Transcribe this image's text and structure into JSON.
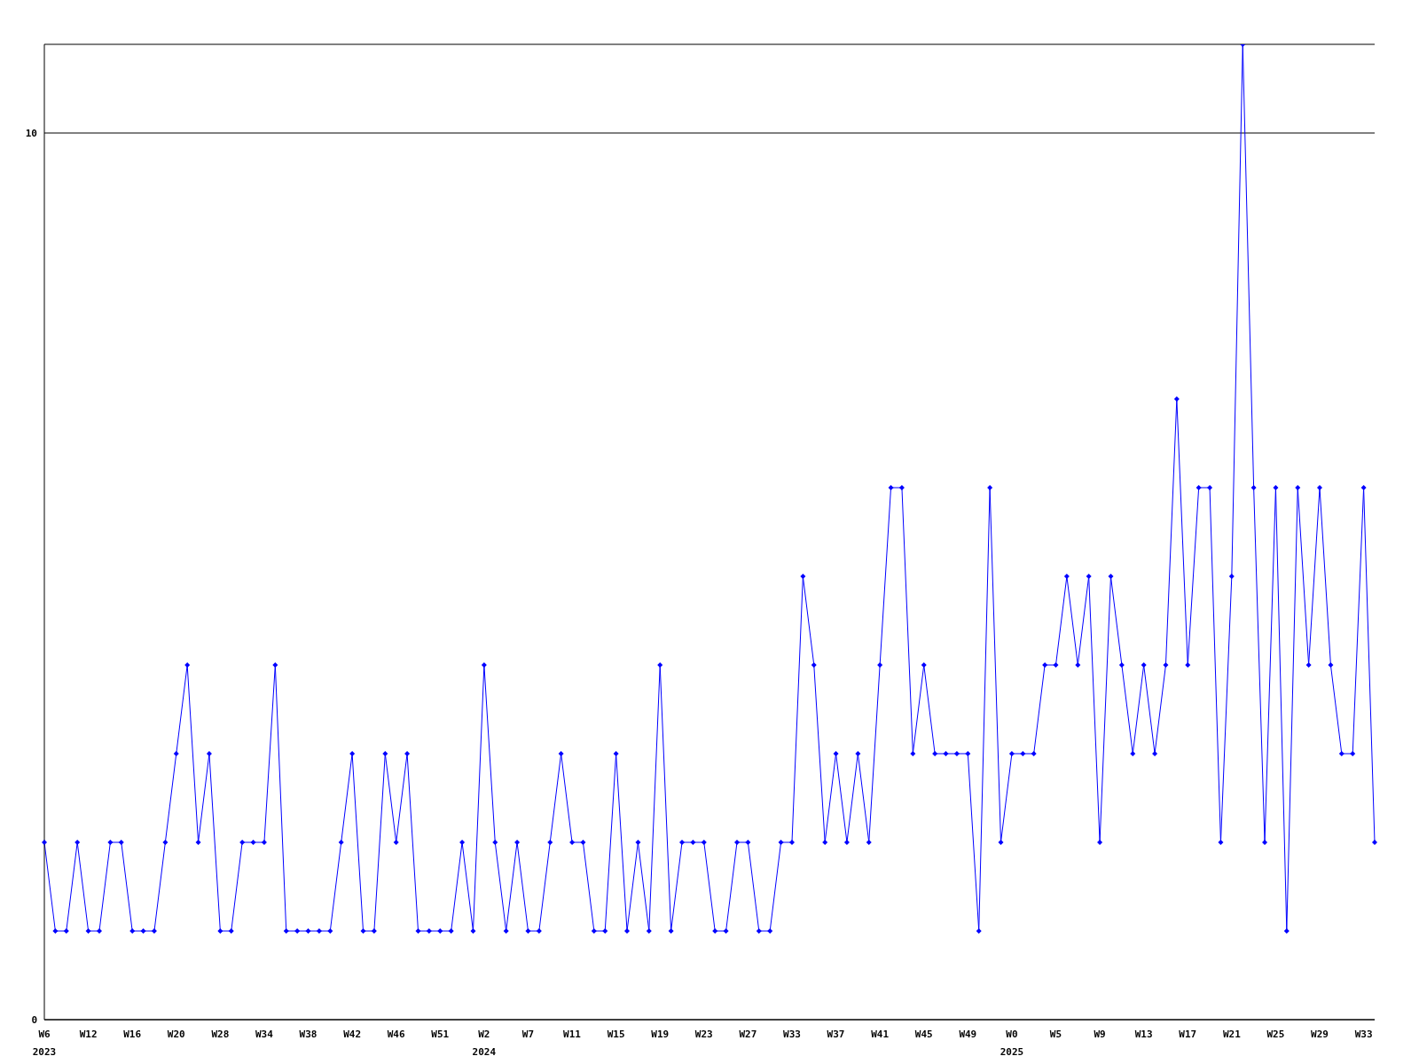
{
  "chart_data": {
    "type": "line",
    "categories": [
      "W6\n2023",
      null,
      null,
      null,
      "W12",
      null,
      null,
      null,
      "W16",
      null,
      null,
      null,
      "W20",
      null,
      null,
      null,
      "W28",
      null,
      null,
      null,
      "W34",
      null,
      null,
      null,
      "W38",
      null,
      null,
      null,
      "W42",
      null,
      null,
      null,
      "W46",
      null,
      null,
      null,
      "W51",
      null,
      null,
      null,
      "W2\n2024",
      null,
      null,
      null,
      "W7",
      null,
      null,
      null,
      "W11",
      null,
      null,
      null,
      "W15",
      null,
      null,
      null,
      "W19",
      null,
      null,
      null,
      "W23",
      null,
      null,
      null,
      "W27",
      null,
      null,
      null,
      "W33",
      null,
      null,
      null,
      "W37",
      null,
      null,
      null,
      "W41",
      null,
      null,
      null,
      "W45",
      null,
      null,
      null,
      "W49",
      null,
      null,
      null,
      "W0\n2025",
      null,
      null,
      null,
      "W5",
      null,
      null,
      null,
      "W9",
      null,
      null,
      null,
      "W13",
      null,
      null,
      null,
      "W17",
      null,
      null,
      null,
      "W21",
      null,
      null,
      null,
      "W25",
      null,
      null,
      null,
      "W29",
      null,
      null,
      null,
      "W33",
      null
    ],
    "values": [
      2,
      1,
      1,
      2,
      1,
      1,
      2,
      2,
      1,
      1,
      1,
      2,
      3,
      4,
      2,
      3,
      1,
      1,
      2,
      2,
      2,
      4,
      1,
      1,
      1,
      1,
      1,
      2,
      3,
      1,
      1,
      3,
      2,
      3,
      1,
      1,
      1,
      1,
      2,
      1,
      4,
      2,
      1,
      2,
      1,
      1,
      2,
      3,
      2,
      2,
      1,
      1,
      3,
      1,
      2,
      1,
      4,
      1,
      2,
      2,
      2,
      1,
      1,
      2,
      2,
      1,
      1,
      2,
      2,
      5,
      4,
      2,
      3,
      2,
      3,
      2,
      4,
      6,
      6,
      3,
      4,
      3,
      3,
      3,
      3,
      1,
      6,
      2,
      3,
      3,
      3,
      4,
      4,
      5,
      4,
      5,
      2,
      5,
      4,
      3,
      4,
      3,
      4,
      7,
      4,
      6,
      6,
      2,
      5,
      11,
      6,
      2,
      6,
      1,
      6,
      4,
      6,
      4,
      3,
      3,
      6,
      2
    ],
    "color": "#0000ff",
    "ylim": [
      0,
      11
    ],
    "yticks": [
      0,
      10
    ],
    "grid": "y",
    "marker": "diamond"
  }
}
